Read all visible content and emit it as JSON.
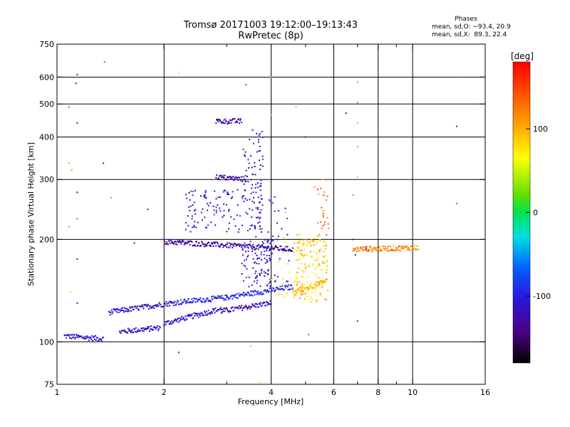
{
  "header": {
    "title_line1": "Tromsø 20171003 19:12:00–19:13:43",
    "title_line2": "RwPretec (8p)"
  },
  "phase_legend": {
    "heading": "Phases",
    "line_o": "mean, sd,O: −93.4, 20.9",
    "line_x": "mean, sd,X:  89.3, 22.4"
  },
  "chart_data": {
    "type": "scatter",
    "xlabel": "Frequency [MHz]",
    "ylabel": "Stationary phase Virtual Height [km]",
    "xscale": "log",
    "yscale": "log",
    "xlim": [
      1,
      16
    ],
    "ylim": [
      75,
      750
    ],
    "xticks": [
      1,
      2,
      4,
      6,
      8,
      10,
      16
    ],
    "x_grid": [
      2,
      4,
      6,
      8,
      10
    ],
    "x_minor": [
      3,
      5,
      7,
      9
    ],
    "yticks": [
      75,
      100,
      200,
      300,
      400,
      500,
      600,
      750
    ],
    "y_grid": [
      100,
      200,
      300,
      400,
      500,
      600
    ],
    "grid": true,
    "colorbar": {
      "label": "[deg]",
      "range": [
        -180,
        180
      ],
      "ticks": [
        100,
        0,
        -100
      ]
    },
    "traces": [
      {
        "name": "",
        "phase": -110,
        "x_range": [
          1.05,
          1.35
        ],
        "h_start": 104,
        "h_end": 102
      },
      {
        "name": "",
        "phase": -115,
        "x_range": [
          1.5,
          1.95
        ],
        "h_start": 107,
        "h_end": 110
      },
      {
        "name": "",
        "phase": -110,
        "x_range": [
          2.0,
          2.9
        ],
        "h_start": 113,
        "h_end": 125
      },
      {
        "name": "",
        "phase": -120,
        "x_range": [
          2.9,
          4.0
        ],
        "h_start": 123,
        "h_end": 130
      },
      {
        "name": "",
        "phase": -115,
        "x_range": [
          1.4,
          2.1
        ],
        "h_start": 122,
        "h_end": 130
      },
      {
        "name": "",
        "phase": -100,
        "x_range": [
          2.1,
          3.0
        ],
        "h_start": 130,
        "h_end": 135
      },
      {
        "name": "",
        "phase": -95,
        "x_range": [
          3.0,
          4.6
        ],
        "h_start": 135,
        "h_end": 145
      },
      {
        "name": "",
        "phase": -125,
        "x_range": [
          2.0,
          4.6
        ],
        "h_start": 197,
        "h_end": 187
      },
      {
        "name": "",
        "phase": -130,
        "x_range": [
          2.8,
          3.4
        ],
        "h_start": 305,
        "h_end": 300
      },
      {
        "name": "",
        "phase": -130,
        "x_range": [
          2.8,
          3.3
        ],
        "h_start": 445,
        "h_end": 445
      },
      {
        "name": "",
        "phase": 95,
        "x_range": [
          4.6,
          5.7
        ],
        "h_start": 140,
        "h_end": 150
      },
      {
        "name": "",
        "phase": 120,
        "x_range": [
          6.8,
          10.3
        ],
        "h_start": 187,
        "h_end": 189
      }
    ],
    "clusters": [
      {
        "name": "",
        "phase": -110,
        "x_range": [
          2.3,
          3.8
        ],
        "h_range": [
          210,
          280
        ],
        "count": 140
      },
      {
        "name": "",
        "phase": -120,
        "x_range": [
          3.3,
          3.8
        ],
        "h_range": [
          280,
          420
        ],
        "count": 50
      },
      {
        "name": "",
        "phase": -110,
        "x_range": [
          3.3,
          4.0
        ],
        "h_range": [
          145,
          200
        ],
        "count": 80
      },
      {
        "name": "",
        "phase": -105,
        "x_range": [
          3.6,
          4.5
        ],
        "h_range": [
          150,
          270
        ],
        "count": 50
      },
      {
        "name": "",
        "phase": 90,
        "x_range": [
          4.6,
          5.8
        ],
        "h_range": [
          130,
          200
        ],
        "count": 150
      },
      {
        "name": "",
        "phase": 70,
        "x_range": [
          4.0,
          5.5
        ],
        "h_range": [
          135,
          210
        ],
        "count": 40
      },
      {
        "name": "",
        "phase": 130,
        "x_range": [
          5.4,
          5.8
        ],
        "h_range": [
          200,
          290
        ],
        "count": 25
      }
    ],
    "points": [
      {
        "name": "",
        "x": 1.14,
        "y": 610,
        "phase": -110
      },
      {
        "name": "",
        "x": 1.13,
        "y": 575,
        "phase": -110
      },
      {
        "name": "",
        "x": 1.36,
        "y": 665,
        "phase": 150
      },
      {
        "name": "",
        "x": 1.08,
        "y": 490,
        "phase": 140
      },
      {
        "name": "",
        "x": 1.14,
        "y": 440,
        "phase": -110
      },
      {
        "name": "",
        "x": 1.08,
        "y": 335,
        "phase": 100
      },
      {
        "name": "",
        "x": 1.1,
        "y": 320,
        "phase": 110
      },
      {
        "name": "",
        "x": 1.14,
        "y": 275,
        "phase": -120
      },
      {
        "name": "",
        "x": 1.14,
        "y": 230,
        "phase": 150
      },
      {
        "name": "",
        "x": 1.08,
        "y": 218,
        "phase": 20
      },
      {
        "name": "",
        "x": 1.14,
        "y": 175,
        "phase": -130
      },
      {
        "name": "",
        "x": 1.14,
        "y": 130,
        "phase": -120
      },
      {
        "name": "",
        "x": 1.09,
        "y": 140,
        "phase": 40
      },
      {
        "name": "",
        "x": 1.8,
        "y": 245,
        "phase": -120
      },
      {
        "name": "",
        "x": 1.65,
        "y": 195,
        "phase": -120
      },
      {
        "name": "",
        "x": 1.35,
        "y": 335,
        "phase": -110
      },
      {
        "name": "",
        "x": 1.42,
        "y": 265,
        "phase": 110
      },
      {
        "name": "",
        "x": 2.2,
        "y": 620,
        "phase": 80
      },
      {
        "name": "",
        "x": 2.2,
        "y": 93,
        "phase": -110
      },
      {
        "name": "",
        "x": 3.4,
        "y": 570,
        "phase": 160
      },
      {
        "name": "",
        "x": 4.0,
        "y": 600,
        "phase": 110
      },
      {
        "name": "",
        "x": 4.0,
        "y": 465,
        "phase": -30
      },
      {
        "name": "",
        "x": 4.7,
        "y": 490,
        "phase": 110
      },
      {
        "name": "",
        "x": 5.0,
        "y": 400,
        "phase": -110
      },
      {
        "name": "",
        "x": 6.5,
        "y": 470,
        "phase": -120
      },
      {
        "name": "",
        "x": 7.0,
        "y": 580,
        "phase": -30
      },
      {
        "name": "",
        "x": 7.0,
        "y": 505,
        "phase": -30
      },
      {
        "name": "",
        "x": 7.0,
        "y": 440,
        "phase": 100
      },
      {
        "name": "",
        "x": 7.0,
        "y": 375,
        "phase": 110
      },
      {
        "name": "",
        "x": 7.0,
        "y": 305,
        "phase": 40
      },
      {
        "name": "",
        "x": 6.8,
        "y": 270,
        "phase": -20
      },
      {
        "name": "",
        "x": 6.8,
        "y": 200,
        "phase": -130
      },
      {
        "name": "",
        "x": 6.9,
        "y": 180,
        "phase": -110
      },
      {
        "name": "",
        "x": 7.0,
        "y": 115,
        "phase": -120
      },
      {
        "name": "",
        "x": 7.4,
        "y": 188,
        "phase": -120
      },
      {
        "name": "",
        "x": 10.4,
        "y": 187,
        "phase": 20
      },
      {
        "name": "",
        "x": 13.3,
        "y": 600,
        "phase": 150
      },
      {
        "name": "",
        "x": 13.3,
        "y": 430,
        "phase": -100
      },
      {
        "name": "",
        "x": 13.3,
        "y": 255,
        "phase": 150
      },
      {
        "name": "",
        "x": 5.1,
        "y": 105,
        "phase": 150
      },
      {
        "name": "",
        "x": 3.5,
        "y": 97,
        "phase": 100
      },
      {
        "name": "",
        "x": 3.7,
        "y": 76,
        "phase": 60
      },
      {
        "name": "",
        "x": 4.4,
        "y": 240,
        "phase": 100
      },
      {
        "name": "",
        "x": 5.3,
        "y": 285,
        "phase": 110
      },
      {
        "name": "",
        "x": 5.6,
        "y": 300,
        "phase": 90
      }
    ]
  }
}
